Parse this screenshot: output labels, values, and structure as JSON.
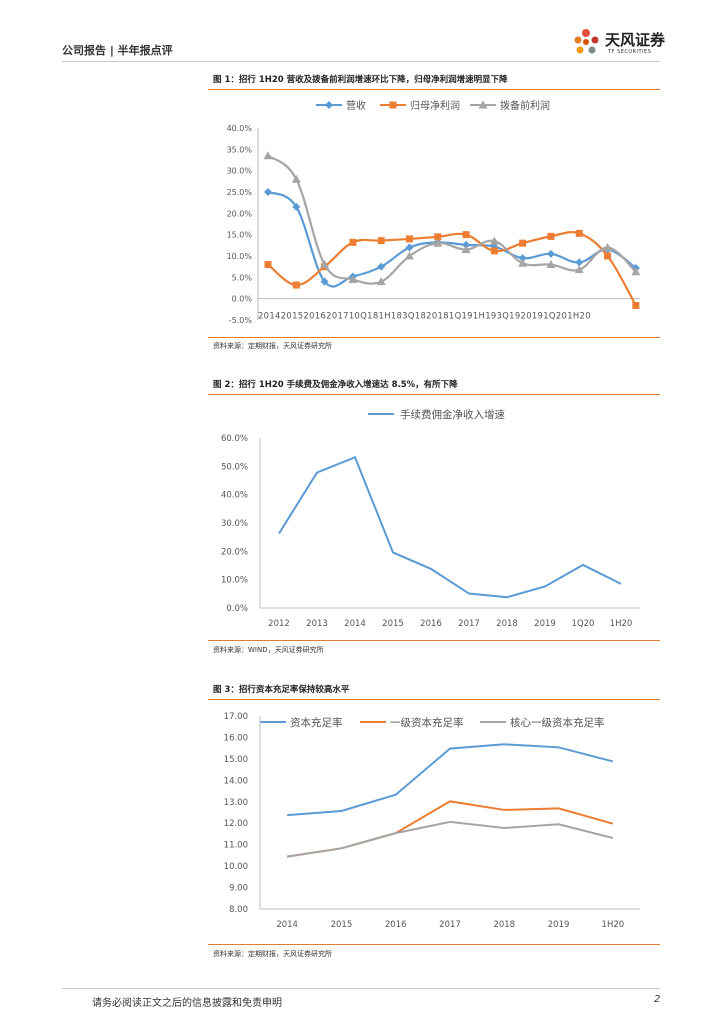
{
  "header": {
    "left": "公司报告 | 半年报点评",
    "brand": "天风证券",
    "brand_sub": "TF SECURITIES"
  },
  "figures": [
    {
      "title": "图 1：招行 1H20 营收及拨备前利润增速环比下降，归母净利润增速明显下降",
      "source": "资料来源：定期财报，天风证券研究所"
    },
    {
      "title": "图 2：招行 1H20 手续费及佣金净收入增速达 8.5%，有所下降",
      "source": "资料来源：WIND，天风证券研究所"
    },
    {
      "title": "图 3：招行资本充足率保持较高水平",
      "source": "资料来源：定期财报，天风证券研究所"
    }
  ],
  "footer": {
    "text": "请务必阅读正文之后的信息披露和免责申明",
    "page": "2"
  },
  "chart_data": [
    {
      "type": "line",
      "categories": [
        "2014",
        "2015",
        "2016",
        "2017",
        "1Q18",
        "1H18",
        "3Q18",
        "2018",
        "1Q19",
        "1H19",
        "3Q19",
        "2019",
        "1Q20",
        "1H20"
      ],
      "series": [
        {
          "name": "营收",
          "color": "#5b9bd5",
          "marker": "diamond",
          "values": [
            25.0,
            21.5,
            4.0,
            5.2,
            7.5,
            12.0,
            13.2,
            12.6,
            12.2,
            9.5,
            10.5,
            8.5,
            11.5,
            7.2
          ]
        },
        {
          "name": "归母净利润",
          "color": "#ed7d31",
          "marker": "square",
          "values": [
            8.0,
            3.2,
            7.5,
            13.2,
            13.6,
            14.0,
            14.5,
            15.0,
            11.2,
            13.0,
            14.6,
            15.3,
            10.0,
            -1.6
          ]
        },
        {
          "name": "拨备前利润",
          "color": "#a5a5a5",
          "marker": "triangle",
          "values": [
            33.5,
            28.0,
            8.0,
            4.5,
            4.0,
            10.0,
            13.0,
            11.5,
            13.5,
            8.3,
            8.0,
            6.8,
            12.0,
            6.3
          ]
        }
      ],
      "yticks": [
        "40.0%",
        "35.0%",
        "30.0%",
        "25.0%",
        "20.0%",
        "15.0%",
        "10.0%",
        "5.0%",
        "0.0%",
        "-5.0%"
      ],
      "ylim": [
        -5,
        40
      ],
      "xtick_text": "201420152016201710Q181H183Q1820181Q191H193Q1920191Q201H20"
    },
    {
      "type": "line",
      "categories": [
        "2012",
        "2013",
        "2014",
        "2015",
        "2016",
        "2017",
        "2018",
        "2019",
        "1Q20",
        "1H20"
      ],
      "series": [
        {
          "name": "手续费佣金净收入增速",
          "color": "#5b9bd5",
          "values": [
            26.3,
            47.8,
            53.2,
            19.6,
            13.8,
            5.1,
            3.8,
            7.6,
            15.2,
            8.5
          ]
        }
      ],
      "yticks": [
        "60.0%",
        "50.0%",
        "40.0%",
        "30.0%",
        "20.0%",
        "10.0%",
        "0.0%"
      ],
      "ylim": [
        0,
        60
      ]
    },
    {
      "type": "line",
      "categories": [
        "2014",
        "2015",
        "2016",
        "2017",
        "2018",
        "2019",
        "1H20"
      ],
      "series": [
        {
          "name": "资本充足率",
          "color": "#5b9bd5",
          "values": [
            12.38,
            12.57,
            13.33,
            15.48,
            15.68,
            15.54,
            14.88
          ]
        },
        {
          "name": "一级资本充足率",
          "color": "#ed7d31",
          "values": [
            10.44,
            10.83,
            11.54,
            13.02,
            12.62,
            12.69,
            11.98
          ]
        },
        {
          "name": "核心一级资本充足率",
          "color": "#a5a5a5",
          "values": [
            10.44,
            10.83,
            11.54,
            12.06,
            11.78,
            11.95,
            11.31
          ]
        }
      ],
      "yticks": [
        "17.00",
        "16.00",
        "15.00",
        "14.00",
        "13.00",
        "12.00",
        "11.00",
        "10.00",
        "9.00",
        "8.00"
      ],
      "ylim": [
        8,
        17
      ]
    }
  ]
}
